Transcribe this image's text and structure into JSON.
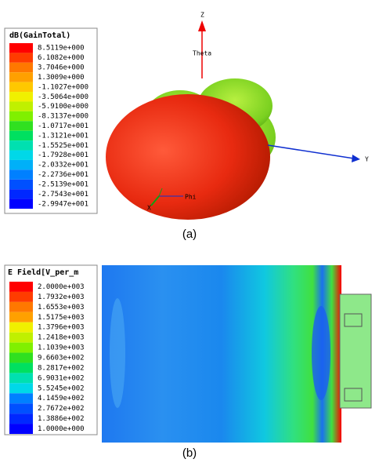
{
  "panel_a": {
    "legend_title": "dB(GainTotal)",
    "legend_labels": [
      "8.5119e+000",
      "6.1082e+000",
      "3.7046e+000",
      "1.3009e+000",
      "-1.1027e+000",
      "-3.5064e+000",
      "-5.9100e+000",
      "-8.3137e+000",
      "-1.0717e+001",
      "-1.3121e+001",
      "-1.5525e+001",
      "-1.7928e+001",
      "-2.0332e+001",
      "-2.2736e+001",
      "-2.5139e+001",
      "-2.7543e+001",
      "-2.9947e+001"
    ],
    "axis_z": "Z",
    "axis_y": "Y",
    "axis_x": "X",
    "theta": "Theta",
    "phi": "Phi",
    "caption": "(a)"
  },
  "panel_b": {
    "legend_title": "E Field[V_per_m",
    "legend_labels": [
      "2.0000e+003",
      "1.7932e+003",
      "1.6553e+003",
      "1.5175e+003",
      "1.3796e+003",
      "1.2418e+003",
      "1.1039e+003",
      "9.6603e+002",
      "8.2817e+002",
      "6.9031e+002",
      "5.5245e+002",
      "4.1459e+002",
      "2.7672e+002",
      "1.3886e+002",
      "1.0000e+000"
    ],
    "caption": "(b)"
  }
}
